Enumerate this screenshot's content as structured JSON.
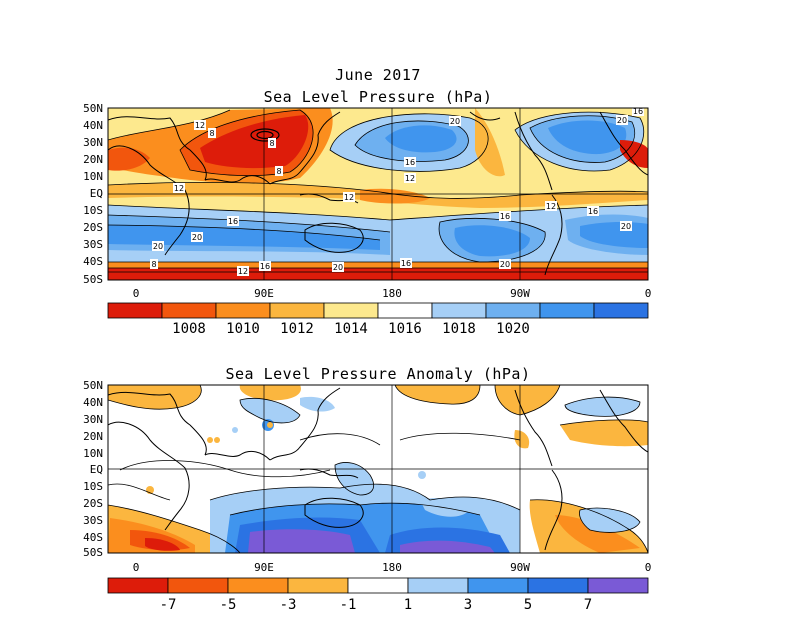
{
  "figure": {
    "title_line1": "June 2017",
    "panels": [
      {
        "id": "slp",
        "title": "Sea Level Pressure (hPa)",
        "lat_labels": [
          "50N",
          "40N",
          "30N",
          "20N",
          "10N",
          "EQ",
          "10S",
          "20S",
          "30S",
          "40S",
          "50S"
        ],
        "lon_labels": [
          "0",
          "90E",
          "180",
          "90W",
          "0"
        ],
        "colorbar": {
          "colors": [
            "#dd1c0a",
            "#f2560d",
            "#fb8e1e",
            "#fbb63f",
            "#fde98e",
            "#ffffff",
            "#a6cff6",
            "#6eb0f0",
            "#4095ee",
            "#2b73e3"
          ],
          "labels": [
            "1008",
            "1010",
            "1012",
            "1014",
            "1016",
            "1018",
            "1020"
          ]
        },
        "contour_labels": [
          {
            "text": "12"
          },
          {
            "text": "8"
          },
          {
            "text": "8"
          },
          {
            "text": "8"
          },
          {
            "text": "20"
          },
          {
            "text": "16"
          },
          {
            "text": "12"
          },
          {
            "text": "20"
          },
          {
            "text": "16"
          },
          {
            "text": "12"
          },
          {
            "text": "12"
          },
          {
            "text": "16"
          },
          {
            "text": "16"
          },
          {
            "text": "20"
          },
          {
            "text": "20"
          },
          {
            "text": "20"
          },
          {
            "text": "8"
          },
          {
            "text": "16"
          },
          {
            "text": "12"
          },
          {
            "text": "20"
          },
          {
            "text": "16"
          },
          {
            "text": "20"
          },
          {
            "text": "12"
          },
          {
            "text": "16"
          }
        ]
      },
      {
        "id": "anom",
        "title": "Sea Level Pressure Anomaly (hPa)",
        "lat_labels": [
          "50N",
          "40N",
          "30N",
          "20N",
          "10N",
          "EQ",
          "10S",
          "20S",
          "30S",
          "40S",
          "50S"
        ],
        "lon_labels": [
          "0",
          "90E",
          "180",
          "90W",
          "0"
        ],
        "colorbar": {
          "colors": [
            "#dd1c0a",
            "#f2560d",
            "#fb8e1e",
            "#fbb63f",
            "#ffffff",
            "#a6cff6",
            "#4095ee",
            "#2b73e3",
            "#7a5ad6"
          ],
          "labels": [
            "-7",
            "-5",
            "-3",
            "-1",
            "1",
            "3",
            "5",
            "7"
          ]
        }
      }
    ]
  }
}
